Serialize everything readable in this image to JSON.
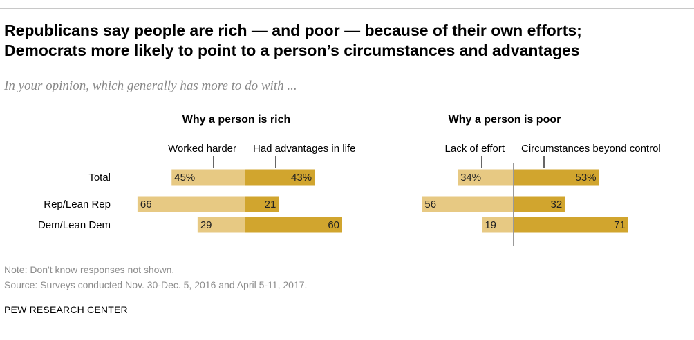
{
  "header": {
    "title_line1": "Republicans say people are rich — and poor — because of their own efforts;",
    "title_line2": "Democrats more likely to point to a person’s circumstances and advantages",
    "subtitle": "In your opinion, which generally has more to do with ..."
  },
  "colors": {
    "left_bar": "#e7c983",
    "right_bar": "#d1a52e",
    "axis": "#9a9a9a"
  },
  "chart_data": {
    "type": "bar",
    "orientation": "horizontal-diverging",
    "categories": [
      "Total",
      "Rep/Lean Rep",
      "Dem/Lean Dem"
    ],
    "panels": [
      {
        "title": "Why a person is rich",
        "series": [
          {
            "name": "Worked harder",
            "values": [
              45,
              66,
              29
            ],
            "labels": [
              "45%",
              "66",
              "29"
            ]
          },
          {
            "name": "Had advantages in life",
            "values": [
              43,
              21,
              60
            ],
            "labels": [
              "43%",
              "21",
              "60"
            ]
          }
        ]
      },
      {
        "title": "Why a person is poor",
        "series": [
          {
            "name": "Lack of effort",
            "values": [
              34,
              56,
              19
            ],
            "labels": [
              "34%",
              "56",
              "19"
            ]
          },
          {
            "name": "Circumstances beyond control",
            "values": [
              53,
              32,
              71
            ],
            "labels": [
              "53%",
              "32",
              "71"
            ]
          }
        ]
      }
    ]
  },
  "footer": {
    "note": "Note: Don't know responses not shown.",
    "source": "Source: Surveys conducted Nov. 30-Dec. 5, 2016 and April 5-11, 2017.",
    "credit": "PEW RESEARCH CENTER"
  }
}
